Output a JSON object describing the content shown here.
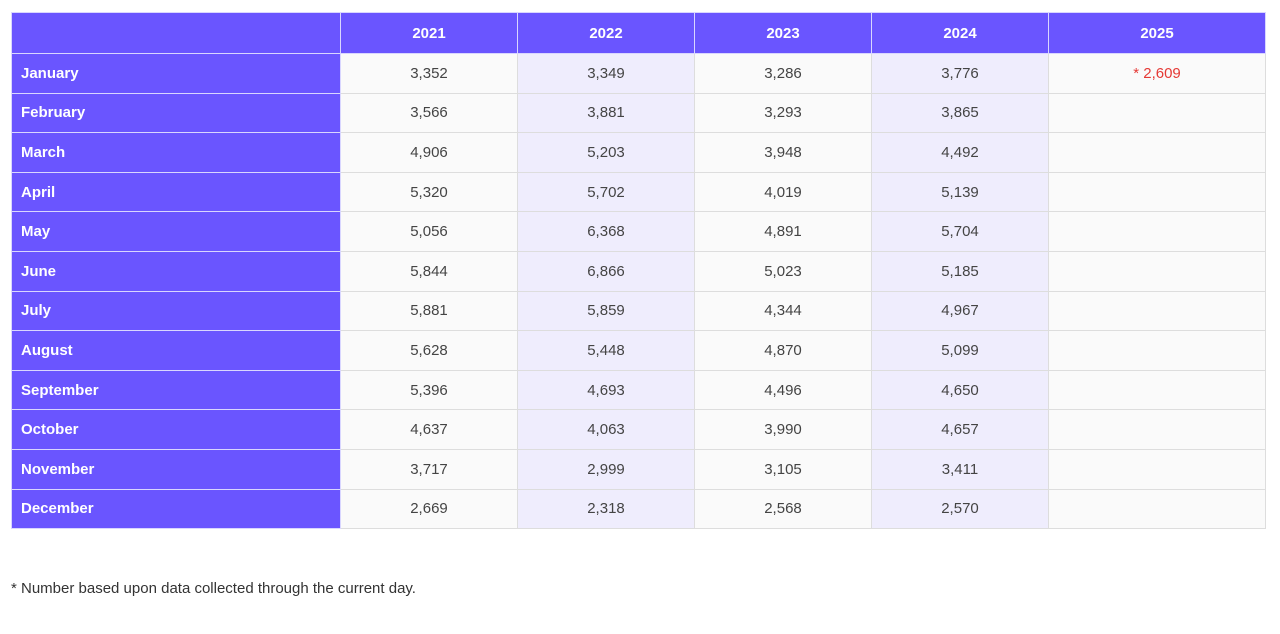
{
  "table": {
    "corner": "",
    "years": [
      "2021",
      "2022",
      "2023",
      "2024",
      "2025"
    ],
    "rows": [
      {
        "month": "January",
        "values": [
          "3,352",
          "3,349",
          "3,286",
          "3,776",
          "* 2,609"
        ]
      },
      {
        "month": "February",
        "values": [
          "3,566",
          "3,881",
          "3,293",
          "3,865",
          ""
        ]
      },
      {
        "month": "March",
        "values": [
          "4,906",
          "5,203",
          "3,948",
          "4,492",
          ""
        ]
      },
      {
        "month": "April",
        "values": [
          "5,320",
          "5,702",
          "4,019",
          "5,139",
          ""
        ]
      },
      {
        "month": "May",
        "values": [
          "5,056",
          "6,368",
          "4,891",
          "5,704",
          ""
        ]
      },
      {
        "month": "June",
        "values": [
          "5,844",
          "6,866",
          "5,023",
          "5,185",
          ""
        ]
      },
      {
        "month": "July",
        "values": [
          "5,881",
          "5,859",
          "4,344",
          "4,967",
          ""
        ]
      },
      {
        "month": "August",
        "values": [
          "5,628",
          "5,448",
          "4,870",
          "5,099",
          ""
        ]
      },
      {
        "month": "September",
        "values": [
          "5,396",
          "4,693",
          "4,496",
          "4,650",
          ""
        ]
      },
      {
        "month": "October",
        "values": [
          "4,637",
          "4,063",
          "3,990",
          "4,657",
          ""
        ]
      },
      {
        "month": "November",
        "values": [
          "3,717",
          "2,999",
          "3,105",
          "3,411",
          ""
        ]
      },
      {
        "month": "December",
        "values": [
          "2,669",
          "2,318",
          "2,568",
          "2,570",
          ""
        ]
      }
    ]
  },
  "footnote": "* Number based upon data collected through the current day.",
  "colors": {
    "header_bg": "#6a55ff",
    "shaded_col_bg": "#efedfd",
    "note_text": "#e53935"
  }
}
